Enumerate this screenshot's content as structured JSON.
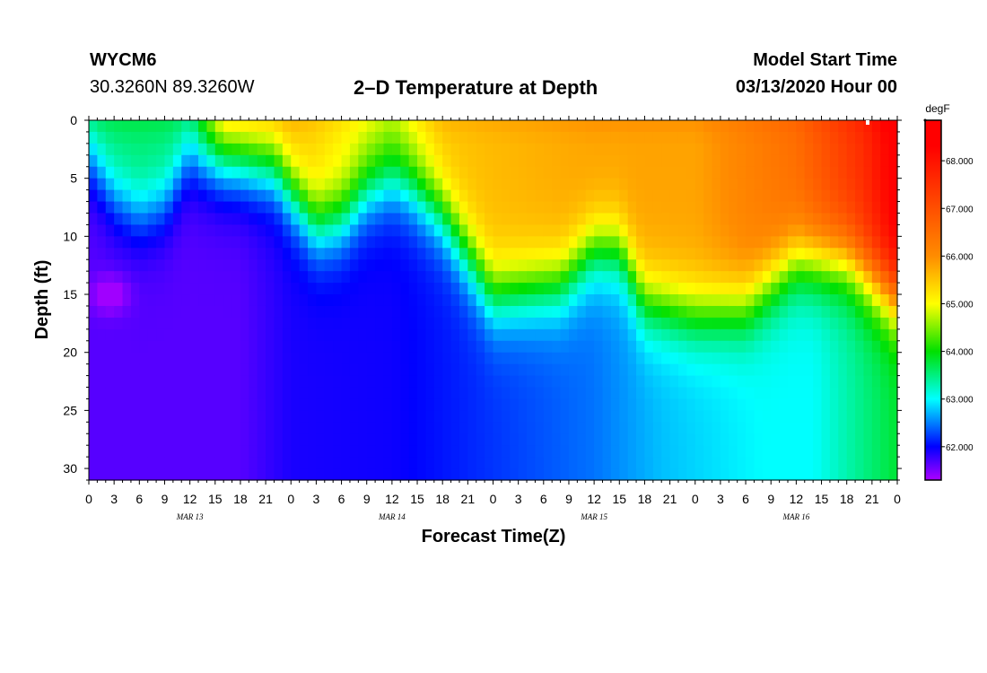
{
  "header": {
    "station": "WYCM6",
    "coords": "30.3260N 89.3260W",
    "title": "2–D Temperature at Depth",
    "model_label": "Model Start Time",
    "model_time": "03/13/2020 Hour 00"
  },
  "chart_data": {
    "type": "heatmap",
    "title": "2–D Temperature at Depth",
    "xlabel": "Forecast Time(Z)",
    "ylabel": "Depth (ft)",
    "x_range_hours": [
      0,
      96
    ],
    "y_range_ft": [
      0,
      31
    ],
    "x_tick_labels": [
      "0",
      "3",
      "6",
      "9",
      "12",
      "15",
      "18",
      "21",
      "0",
      "3",
      "6",
      "9",
      "12",
      "15",
      "18",
      "21",
      "0",
      "3",
      "6",
      "9",
      "12",
      "15",
      "18",
      "21",
      "0",
      "3",
      "6",
      "9",
      "12",
      "15",
      "18",
      "21",
      "0"
    ],
    "y_ticks": [
      0,
      5,
      10,
      15,
      20,
      25,
      30
    ],
    "y_tick_labels": [
      "0",
      "5",
      "10",
      "15",
      "20",
      "25",
      "30"
    ],
    "date_labels": [
      {
        "hour": 12,
        "label": "MAR 13"
      },
      {
        "hour": 36,
        "label": "MAR 14"
      },
      {
        "hour": 60,
        "label": "MAR 15"
      },
      {
        "hour": 84,
        "label": "MAR 16"
      }
    ],
    "colorbar": {
      "unit": "degF",
      "range": [
        61.3,
        68.85
      ],
      "ticks": [
        62.0,
        63.0,
        64.0,
        65.0,
        66.0,
        67.0,
        68.0
      ],
      "tick_labels": [
        "62.000",
        "63.000",
        "64.000",
        "65.000",
        "66.000",
        "67.000",
        "68.000"
      ],
      "colors": [
        "#a000ff",
        "#0000ff",
        "#00ffff",
        "#00e000",
        "#ffff00",
        "#ff8c00",
        "#ff0000"
      ]
    },
    "surface_temp_degF": [
      {
        "hour": 0,
        "value": 63.6
      },
      {
        "hour": 12,
        "value": 63.6
      },
      {
        "hour": 16,
        "value": 65.6
      },
      {
        "hour": 24,
        "value": 65.6
      },
      {
        "hour": 36,
        "value": 64.7
      },
      {
        "hour": 42,
        "value": 65.5
      },
      {
        "hour": 60,
        "value": 65.8
      },
      {
        "hour": 72,
        "value": 65.8
      },
      {
        "hour": 84,
        "value": 66.5
      },
      {
        "hour": 92,
        "value": 67.6
      },
      {
        "hour": 96,
        "value": 68.5
      }
    ],
    "bottom_temp_degF": [
      {
        "hour": 0,
        "value": 61.65
      },
      {
        "hour": 18,
        "value": 61.65
      },
      {
        "hour": 24,
        "value": 61.9
      },
      {
        "hour": 36,
        "value": 61.95
      },
      {
        "hour": 48,
        "value": 62.2
      },
      {
        "hour": 60,
        "value": 62.45
      },
      {
        "hour": 68,
        "value": 62.75
      },
      {
        "hour": 80,
        "value": 63.0
      },
      {
        "hour": 86,
        "value": 63.0
      },
      {
        "hour": 96,
        "value": 63.8
      }
    ],
    "thermocline_depth_ft": [
      {
        "hour": 0,
        "value": 3.0
      },
      {
        "hour": 3,
        "value": 6.5
      },
      {
        "hour": 6,
        "value": 8.0
      },
      {
        "hour": 9,
        "value": 7.0
      },
      {
        "hour": 12,
        "value": 3.0
      },
      {
        "hour": 18,
        "value": 3.5
      },
      {
        "hour": 22,
        "value": 4.0
      },
      {
        "hour": 27,
        "value": 9.0
      },
      {
        "hour": 30,
        "value": 8.5
      },
      {
        "hour": 33,
        "value": 6.0
      },
      {
        "hour": 36,
        "value": 5.0
      },
      {
        "hour": 38,
        "value": 5.5
      },
      {
        "hour": 42,
        "value": 8.0
      },
      {
        "hour": 48,
        "value": 15.0
      },
      {
        "hour": 56,
        "value": 14.0
      },
      {
        "hour": 60,
        "value": 11.0
      },
      {
        "hour": 63,
        "value": 11.0
      },
      {
        "hour": 66,
        "value": 15.5
      },
      {
        "hour": 72,
        "value": 16.5
      },
      {
        "hour": 78,
        "value": 16.0
      },
      {
        "hour": 84,
        "value": 12.0
      },
      {
        "hour": 90,
        "value": 12.0
      },
      {
        "hour": 96,
        "value": 15.5
      }
    ]
  }
}
